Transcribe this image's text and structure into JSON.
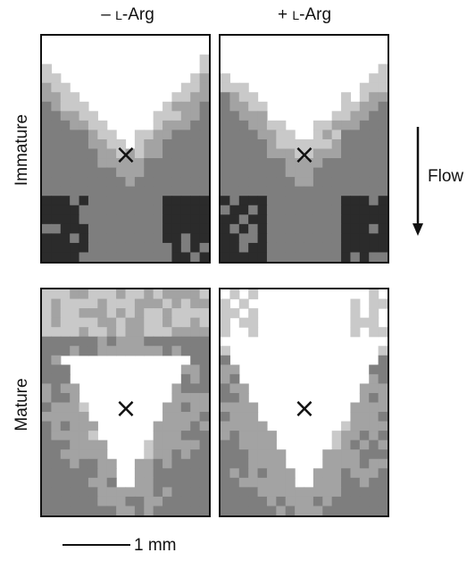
{
  "columns": [
    {
      "prefix": "– ",
      "smallcaps": "L",
      "suffix": "-Arg"
    },
    {
      "prefix": "+ ",
      "smallcaps": "L",
      "suffix": "-Arg"
    }
  ],
  "rows": [
    "Immature",
    "Mature"
  ],
  "marker": "×",
  "flow_label": "Flow",
  "scale_label": "1 mm",
  "colors": {
    "level0": "#ffffff",
    "level1": "#c9c9c9",
    "level2": "#a3a3a3",
    "level3": "#7e7e7e",
    "level4": "#2b2b2b",
    "border": "#111111"
  }
}
